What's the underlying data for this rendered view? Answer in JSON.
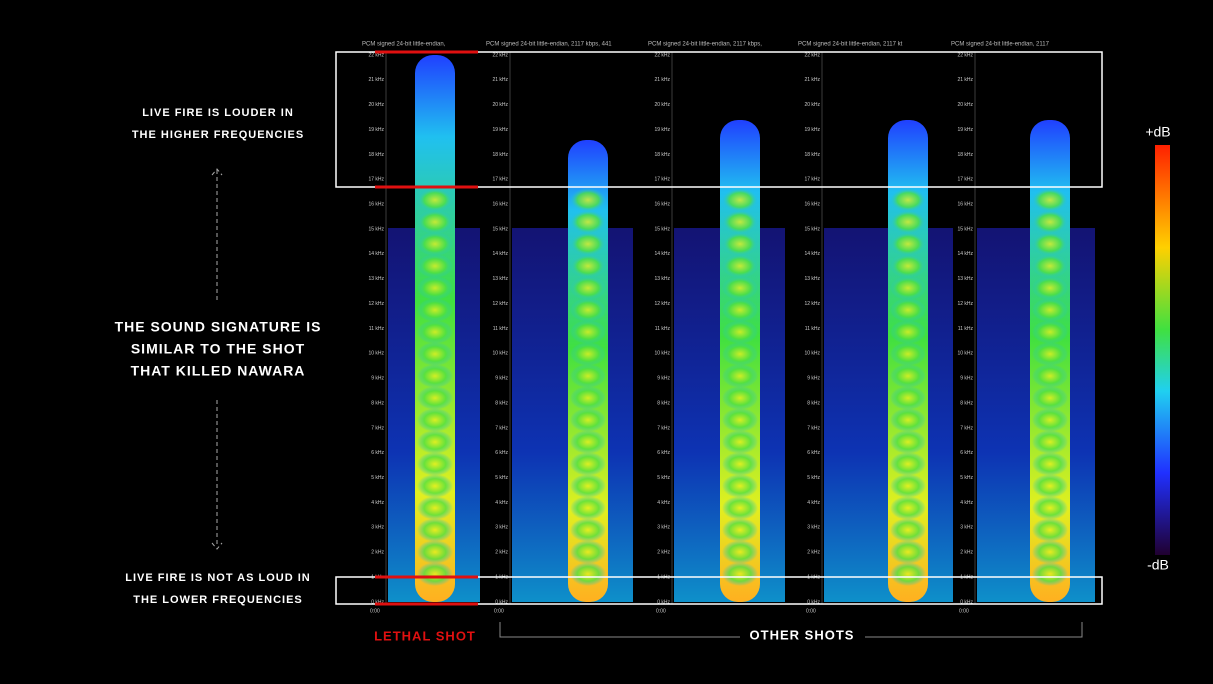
{
  "annotations": {
    "top": [
      "LIVE FIRE IS LOUDER IN",
      "THE HIGHER FREQUENCIES"
    ],
    "middle": [
      "THE SOUND SIGNATURE IS",
      "SIMILAR TO THE SHOT",
      "THAT KILLED NAWARA"
    ],
    "bottom": [
      "LIVE FIRE IS NOT AS LOUD IN",
      "THE LOWER FREQUENCIES"
    ]
  },
  "panels": {
    "headers": [
      "PCM signed 24-bit little-endian,",
      "PCM signed 24-bit little-endian, 2117 kbps, 441",
      "PCM signed 24-bit little-endian, 2117 kbps,",
      "PCM signed 24-bit little-endian, 2117 kt",
      "PCM signed 24-bit little-endian, 2117"
    ],
    "time_labels": [
      "0:00",
      "0:00",
      "0:00",
      "0:00",
      "0:00"
    ],
    "freq_labels": [
      "0 kHz",
      "1 kHz",
      "2 kHz",
      "3 kHz",
      "4 kHz",
      "5 kHz",
      "6 kHz",
      "7 kHz",
      "8 kHz",
      "9 kHz",
      "10 kHz",
      "11 kHz",
      "12 kHz",
      "13 kHz",
      "14 kHz",
      "15 kHz",
      "16 kHz",
      "17 kHz",
      "18 kHz",
      "19 kHz",
      "20 kHz",
      "21 kHz",
      "22 kHz"
    ]
  },
  "footer": {
    "lethal": "LETHAL SHOT",
    "others": "OTHER SHOTS"
  },
  "colorbar": {
    "top": "+dB",
    "bottom": "-dB"
  }
}
